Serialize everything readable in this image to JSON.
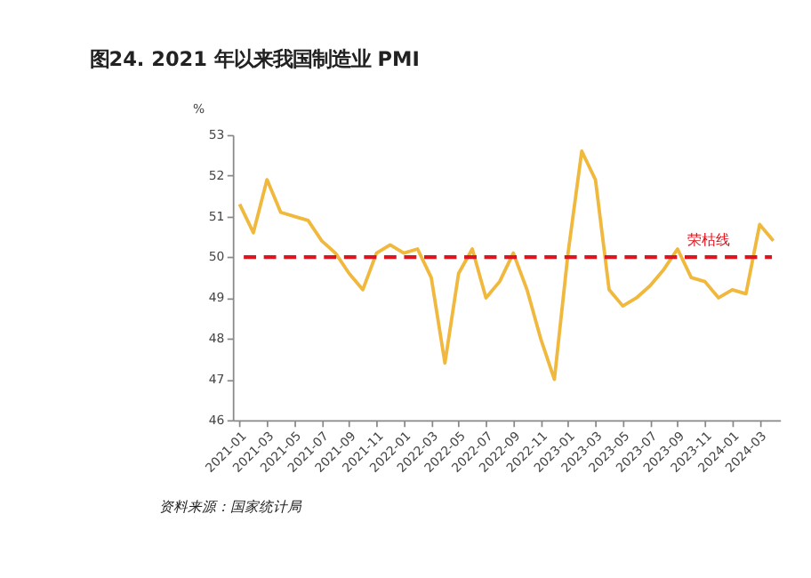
{
  "chart_data": {
    "type": "line",
    "title": "图24. 2021 年以来我国制造业 PMI",
    "ylabel": "%",
    "categories": [
      "2021-01",
      null,
      "2021-03",
      null,
      "2021-05",
      null,
      "2021-07",
      null,
      "2021-09",
      null,
      "2021-11",
      null,
      "2022-01",
      null,
      "2022-03",
      null,
      "2022-05",
      null,
      "2022-07",
      null,
      "2022-09",
      null,
      "2022-11",
      null,
      "2023-01",
      null,
      "2023-03",
      null,
      "2023-05",
      null,
      "2023-07",
      null,
      "2023-09",
      null,
      "2023-11",
      null,
      "2024-01",
      null,
      "2024-03",
      null
    ],
    "series": [
      {
        "color": "#f0b83c",
        "values": [
          51.3,
          50.6,
          51.9,
          51.1,
          51.0,
          50.9,
          50.4,
          50.1,
          49.6,
          49.2,
          50.1,
          50.3,
          50.1,
          50.2,
          49.5,
          47.4,
          49.6,
          50.2,
          49.0,
          49.4,
          50.1,
          49.2,
          48.0,
          47.0,
          50.1,
          52.6,
          51.9,
          49.2,
          48.8,
          49.0,
          49.3,
          49.7,
          50.2,
          49.5,
          49.4,
          49.0,
          49.2,
          49.1,
          50.8,
          50.4
        ]
      }
    ],
    "ylim": [
      46,
      53
    ],
    "yticks": [
      46,
      47,
      48,
      49,
      50,
      51,
      52,
      53
    ],
    "grid": false,
    "line_style": "solid",
    "marker": "none",
    "ref_lines": [
      {
        "axis": "y",
        "value": 50,
        "label": "荣枯线",
        "color": "#e0141e",
        "line_style": "dashed"
      }
    ],
    "annotations": [
      "资料来源：国家统计局"
    ]
  }
}
